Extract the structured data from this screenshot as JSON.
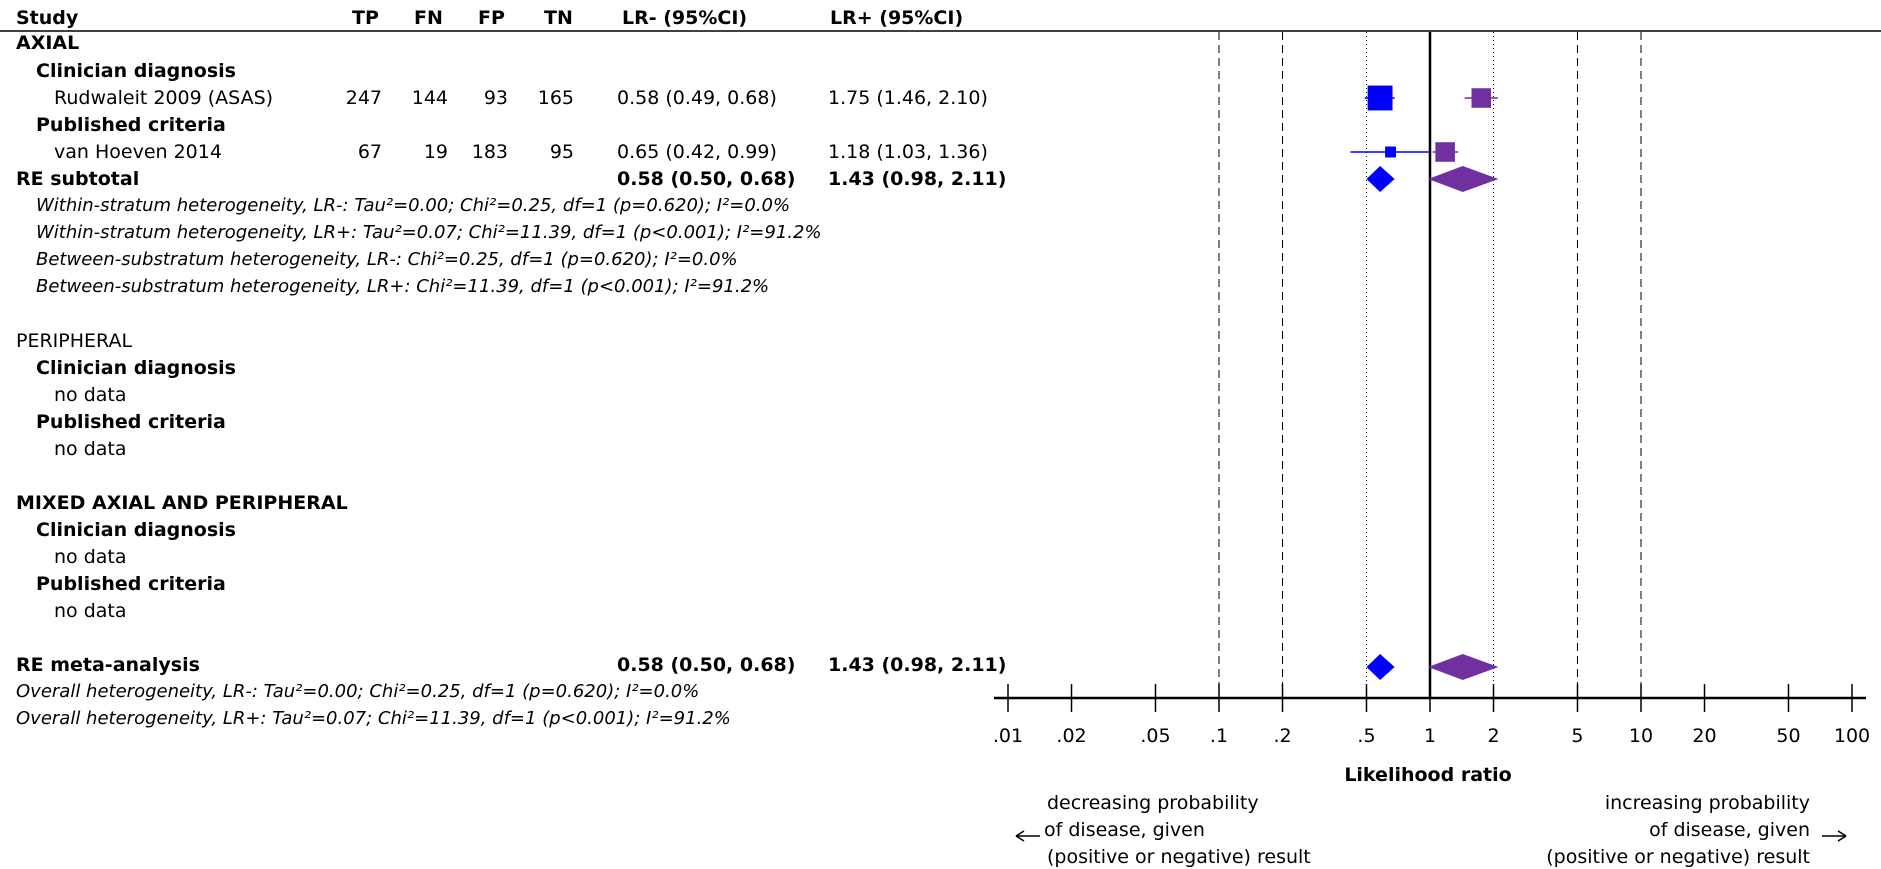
{
  "header": {
    "study": "Study",
    "tp": "TP",
    "fn": "FN",
    "fp": "FP",
    "tn": "TN",
    "lrneg": "LR- (95%CI)",
    "lrpos": "LR+ (95%CI)"
  },
  "sections": {
    "axial": {
      "title": "AXIAL",
      "clinician_label": "Clinician diagnosis",
      "published_label": "Published criteria",
      "study1": {
        "name": "Rudwaleit 2009 (ASAS)",
        "tp": "247",
        "fn": "144",
        "fp": "93",
        "tn": "165",
        "lrneg": "0.58 (0.49, 0.68)",
        "lrpos": "1.75 (1.46, 2.10)"
      },
      "study2": {
        "name": "van Hoeven 2014",
        "tp": "67",
        "fn": "19",
        "fp": "183",
        "tn": "95",
        "lrneg": "0.65 (0.42, 0.99)",
        "lrpos": "1.18 (1.03, 1.36)"
      },
      "subtotal": {
        "label": "RE subtotal",
        "lrneg": "0.58 (0.50, 0.68)",
        "lrpos": "1.43 (0.98, 2.11)"
      },
      "notes": [
        "Within-stratum heterogeneity, LR-: Tau²=0.00; Chi²=0.25, df=1 (p=0.620); I²=0.0%",
        "Within-stratum heterogeneity, LR+: Tau²=0.07; Chi²=11.39, df=1 (p<0.001); I²=91.2%",
        "Between-substratum heterogeneity, LR-: Chi²=0.25, df=1 (p=0.620); I²=0.0%",
        "Between-substratum heterogeneity, LR+: Chi²=11.39, df=1 (p<0.001); I²=91.2%"
      ]
    },
    "peripheral": {
      "title": "PERIPHERAL",
      "clinician_label": "Clinician diagnosis",
      "clinician_nodata": "no data",
      "published_label": "Published criteria",
      "published_nodata": "no data"
    },
    "mixed": {
      "title": "MIXED AXIAL AND PERIPHERAL",
      "clinician_label": "Clinician diagnosis",
      "clinician_nodata": "no data",
      "published_label": "Published criteria",
      "published_nodata": "no data"
    },
    "overall": {
      "label": "RE meta-analysis",
      "lrneg": "0.58 (0.50, 0.68)",
      "lrpos": "1.43 (0.98, 2.11)",
      "notes": [
        "Overall heterogeneity, LR-: Tau²=0.00; Chi²=0.25, df=1 (p=0.620); I²=0.0%",
        "Overall heterogeneity, LR+: Tau²=0.07; Chi²=11.39, df=1 (p<0.001); I²=91.2%"
      ]
    }
  },
  "axis_annotations": {
    "left_line1": "decreasing probability",
    "left_line2": "of disease, given",
    "left_line3": "(positive or negative) result",
    "right_line1": "increasing probability",
    "right_line2": "of disease, given",
    "right_line3": "(positive or negative) result"
  },
  "chart_data": {
    "type": "scatter",
    "xlabel": "Likelihood ratio",
    "xscale": "log",
    "xlim": [
      0.01,
      100
    ],
    "ticks": [
      0.01,
      0.02,
      0.05,
      0.1,
      0.2,
      0.5,
      1,
      2,
      5,
      10,
      20,
      50,
      100
    ],
    "tick_labels": [
      ".01",
      ".02",
      ".05",
      ".1",
      ".2",
      ".5",
      "1",
      "2",
      "5",
      "10",
      "20",
      "50",
      "100"
    ],
    "dashed_reference_lines": [
      0.1,
      0.2,
      5,
      10
    ],
    "dotted_reference_lines": [
      0.5,
      2
    ],
    "null_line": 1,
    "series": [
      {
        "name": "LR-",
        "color": "#0000ff",
        "points": [
          {
            "row": "rudwaleit",
            "est": 0.58,
            "lo": 0.49,
            "hi": 0.68,
            "weight": 0.9
          },
          {
            "row": "vanhoeven",
            "est": 0.65,
            "lo": 0.42,
            "hi": 0.99,
            "weight": 0.1
          }
        ],
        "pooled": [
          {
            "row": "subtotal",
            "est": 0.58,
            "lo": 0.5,
            "hi": 0.68
          },
          {
            "row": "overall",
            "est": 0.58,
            "lo": 0.5,
            "hi": 0.68
          }
        ]
      },
      {
        "name": "LR+",
        "color": "#7030a0",
        "points": [
          {
            "row": "rudwaleit",
            "est": 1.75,
            "lo": 1.46,
            "hi": 2.1,
            "weight": 0.5
          },
          {
            "row": "vanhoeven",
            "est": 1.18,
            "lo": 1.03,
            "hi": 1.36,
            "weight": 0.5
          }
        ],
        "pooled": [
          {
            "row": "subtotal",
            "est": 1.43,
            "lo": 0.98,
            "hi": 2.11
          },
          {
            "row": "overall",
            "est": 1.43,
            "lo": 0.98,
            "hi": 2.11
          }
        ]
      }
    ]
  }
}
